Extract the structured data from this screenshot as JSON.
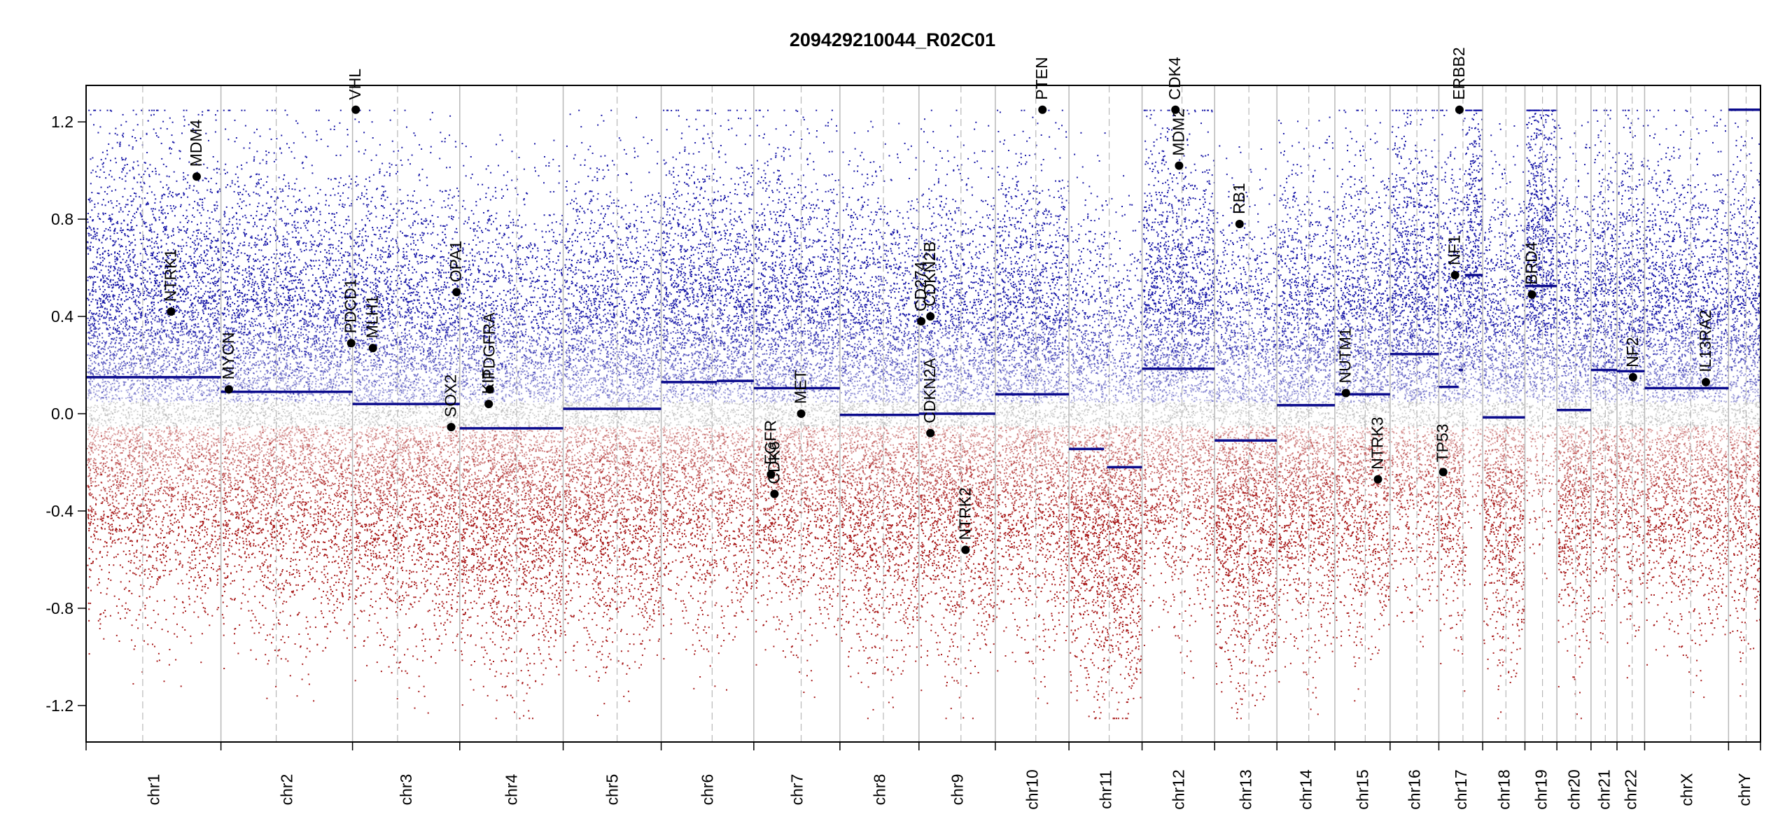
{
  "chart_data": {
    "type": "scatter",
    "title": "209429210044_R02C01",
    "xlabel": "",
    "ylabel": "",
    "ylim": [
      -1.35,
      1.35
    ],
    "y_ticks": [
      "-1.2",
      "-0.8",
      "-0.4",
      "0.0",
      "0.4",
      "0.8",
      "1.2"
    ],
    "y_tick_values": [
      -1.2,
      -0.8,
      -0.4,
      0.0,
      0.4,
      0.8,
      1.2
    ],
    "grid": false,
    "legend": "none",
    "colors": {
      "gain": "#1a1aa8",
      "loss": "#a81a1a",
      "neutral": "#aaaaaa",
      "segment": "#0b0b8c",
      "gene": "#000000",
      "boundary": "#bbbbbb"
    },
    "chromosomes": [
      {
        "name": "chr1",
        "size": 249
      },
      {
        "name": "chr2",
        "size": 243
      },
      {
        "name": "chr3",
        "size": 198
      },
      {
        "name": "chr4",
        "size": 191
      },
      {
        "name": "chr5",
        "size": 181
      },
      {
        "name": "chr6",
        "size": 171
      },
      {
        "name": "chr7",
        "size": 159
      },
      {
        "name": "chr8",
        "size": 146
      },
      {
        "name": "chr9",
        "size": 141
      },
      {
        "name": "chr10",
        "size": 136
      },
      {
        "name": "chr11",
        "size": 135
      },
      {
        "name": "chr12",
        "size": 134
      },
      {
        "name": "chr13",
        "size": 115
      },
      {
        "name": "chr14",
        "size": 107
      },
      {
        "name": "chr15",
        "size": 102
      },
      {
        "name": "chr16",
        "size": 90
      },
      {
        "name": "chr17",
        "size": 81
      },
      {
        "name": "chr18",
        "size": 78
      },
      {
        "name": "chr19",
        "size": 59
      },
      {
        "name": "chr20",
        "size": 63
      },
      {
        "name": "chr21",
        "size": 48
      },
      {
        "name": "chr22",
        "size": 51
      },
      {
        "name": "chrX",
        "size": 155
      },
      {
        "name": "chrY",
        "size": 59
      }
    ],
    "segments": [
      {
        "chr": "chr1",
        "start": 0,
        "end": 1,
        "value": 0.15
      },
      {
        "chr": "chr2",
        "start": 0,
        "end": 1,
        "value": 0.09
      },
      {
        "chr": "chr3",
        "start": 0,
        "end": 1,
        "value": 0.04
      },
      {
        "chr": "chr4",
        "start": 0,
        "end": 1,
        "value": -0.06
      },
      {
        "chr": "chr5",
        "start": 0,
        "end": 1,
        "value": 0.02
      },
      {
        "chr": "chr6",
        "start": 0,
        "end": 0.6,
        "value": 0.13
      },
      {
        "chr": "chr6",
        "start": 0.6,
        "end": 1,
        "value": 0.135
      },
      {
        "chr": "chr7",
        "start": 0,
        "end": 1,
        "value": 0.105
      },
      {
        "chr": "chr8",
        "start": 0,
        "end": 1,
        "value": -0.005
      },
      {
        "chr": "chr9",
        "start": 0,
        "end": 1,
        "value": 0.0
      },
      {
        "chr": "chr10",
        "start": 0,
        "end": 1,
        "value": 0.08
      },
      {
        "chr": "chr11",
        "start": 0,
        "end": 0.48,
        "value": -0.145
      },
      {
        "chr": "chr11",
        "start": 0.52,
        "end": 1,
        "value": -0.22
      },
      {
        "chr": "chr12",
        "start": 0,
        "end": 1,
        "value": 0.185
      },
      {
        "chr": "chr13",
        "start": 0,
        "end": 1,
        "value": -0.11
      },
      {
        "chr": "chr14",
        "start": 0,
        "end": 1,
        "value": 0.035
      },
      {
        "chr": "chr15",
        "start": 0,
        "end": 1,
        "value": 0.08
      },
      {
        "chr": "chr16",
        "start": 0,
        "end": 1,
        "value": 0.245
      },
      {
        "chr": "chr17",
        "start": 0,
        "end": 0.45,
        "value": 0.11
      },
      {
        "chr": "chr17",
        "start": 0.45,
        "end": 0.55,
        "value": 0.18
      },
      {
        "chr": "chr17",
        "start": 0.6,
        "end": 1,
        "value": 0.57
      },
      {
        "chr": "chr18",
        "start": 0,
        "end": 1,
        "value": -0.015
      },
      {
        "chr": "chr19",
        "start": 0,
        "end": 1,
        "value": 0.525
      },
      {
        "chr": "chr20",
        "start": 0,
        "end": 1,
        "value": 0.015
      },
      {
        "chr": "chr21",
        "start": 0,
        "end": 1,
        "value": 0.18
      },
      {
        "chr": "chr22",
        "start": 0,
        "end": 1,
        "value": 0.175
      },
      {
        "chr": "chrX",
        "start": 0,
        "end": 1,
        "value": 0.105
      },
      {
        "chr": "chrY",
        "start": 0,
        "end": 1,
        "value": 1.25
      }
    ],
    "genes": [
      {
        "name": "NTRK1",
        "chr": "chr1",
        "pos": 0.63,
        "value": 0.42
      },
      {
        "name": "MDM4",
        "chr": "chr1",
        "pos": 0.82,
        "value": 0.975
      },
      {
        "name": "MYCN",
        "chr": "chr2",
        "pos": 0.06,
        "value": 0.1
      },
      {
        "name": "PDCD1",
        "chr": "chr2",
        "pos": 0.99,
        "value": 0.29
      },
      {
        "name": "VHL",
        "chr": "chr3",
        "pos": 0.03,
        "value": 1.25
      },
      {
        "name": "MLH1",
        "chr": "chr3",
        "pos": 0.19,
        "value": 0.27
      },
      {
        "name": "OPA1",
        "chr": "chr3",
        "pos": 0.97,
        "value": 0.5
      },
      {
        "name": "SOX2",
        "chr": "chr3",
        "pos": 0.92,
        "value": -0.055
      },
      {
        "name": "PDGFRA",
        "chr": "chr4",
        "pos": 0.29,
        "value": 0.1
      },
      {
        "name": "KIT",
        "chr": "chr4",
        "pos": 0.28,
        "value": 0.04
      },
      {
        "name": "EGFR",
        "chr": "chr7",
        "pos": 0.2,
        "value": -0.25
      },
      {
        "name": "CDK6",
        "chr": "chr7",
        "pos": 0.24,
        "value": -0.33
      },
      {
        "name": "MET",
        "chr": "chr7",
        "pos": 0.55,
        "value": 0.0
      },
      {
        "name": "CD274",
        "chr": "chr9",
        "pos": 0.03,
        "value": 0.38
      },
      {
        "name": "CDKN2B",
        "chr": "chr9",
        "pos": 0.15,
        "value": 0.4
      },
      {
        "name": "CDKN2A",
        "chr": "chr9",
        "pos": 0.15,
        "value": -0.08
      },
      {
        "name": "NTRK2",
        "chr": "chr9",
        "pos": 0.61,
        "value": -0.56
      },
      {
        "name": "PTEN",
        "chr": "chr10",
        "pos": 0.64,
        "value": 1.25
      },
      {
        "name": "CDK4",
        "chr": "chr12",
        "pos": 0.46,
        "value": 1.25
      },
      {
        "name": "MDM2",
        "chr": "chr12",
        "pos": 0.51,
        "value": 1.02
      },
      {
        "name": "RB1",
        "chr": "chr13",
        "pos": 0.4,
        "value": 0.78
      },
      {
        "name": "NUTM1",
        "chr": "chr15",
        "pos": 0.2,
        "value": 0.085
      },
      {
        "name": "NTRK3",
        "chr": "chr15",
        "pos": 0.78,
        "value": -0.27
      },
      {
        "name": "TP53",
        "chr": "chr17",
        "pos": 0.1,
        "value": -0.24
      },
      {
        "name": "NF1",
        "chr": "chr17",
        "pos": 0.37,
        "value": 0.57
      },
      {
        "name": "ERBB2",
        "chr": "chr17",
        "pos": 0.47,
        "value": 1.25
      },
      {
        "name": "BRD4",
        "chr": "chr19",
        "pos": 0.22,
        "value": 0.49
      },
      {
        "name": "NF2",
        "chr": "chr22",
        "pos": 0.58,
        "value": 0.15
      },
      {
        "name": "IL13RA2",
        "chr": "chrX",
        "pos": 0.73,
        "value": 0.13
      }
    ]
  }
}
